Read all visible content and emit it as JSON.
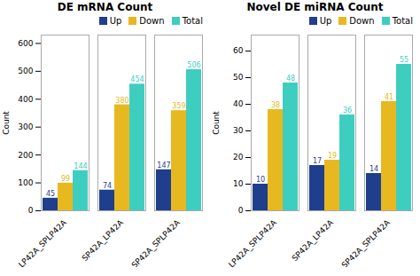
{
  "chart_data": [
    {
      "type": "bar",
      "title": "DE mRNA Count",
      "categories": [
        "LP42A_SPLP42A",
        "SP42A_LP42A",
        "SP42A_SPLP42A"
      ],
      "series": [
        {
          "name": "Up",
          "color": "#1f3e8c",
          "values": [
            45,
            74,
            147
          ]
        },
        {
          "name": "Down",
          "color": "#e8b820",
          "values": [
            99,
            380,
            359
          ]
        },
        {
          "name": "Total",
          "color": "#3ecec0",
          "values": [
            144,
            454,
            506
          ]
        }
      ],
      "ylabel": "Count",
      "ylim": [
        0,
        630
      ],
      "yticks": [
        0,
        100,
        200,
        300,
        400,
        500,
        600
      ],
      "grid": false,
      "legend": "upper right",
      "data_labels": true
    },
    {
      "type": "bar",
      "title": "Novel DE miRNA Count",
      "categories": [
        "LP42A_SPLP42A",
        "SP42A_LP42A",
        "SP42A_SPLP42A"
      ],
      "series": [
        {
          "name": "Up",
          "color": "#1f3e8c",
          "values": [
            10,
            17,
            14
          ]
        },
        {
          "name": "Down",
          "color": "#e8b820",
          "values": [
            38,
            19,
            41
          ]
        },
        {
          "name": "Total",
          "color": "#3ecec0",
          "values": [
            48,
            36,
            55
          ]
        }
      ],
      "ylabel": "Count",
      "ylim": [
        0,
        66
      ],
      "yticks": [
        0,
        10,
        20,
        30,
        40,
        50,
        60
      ],
      "grid": false,
      "legend": "upper right",
      "data_labels": true
    }
  ]
}
